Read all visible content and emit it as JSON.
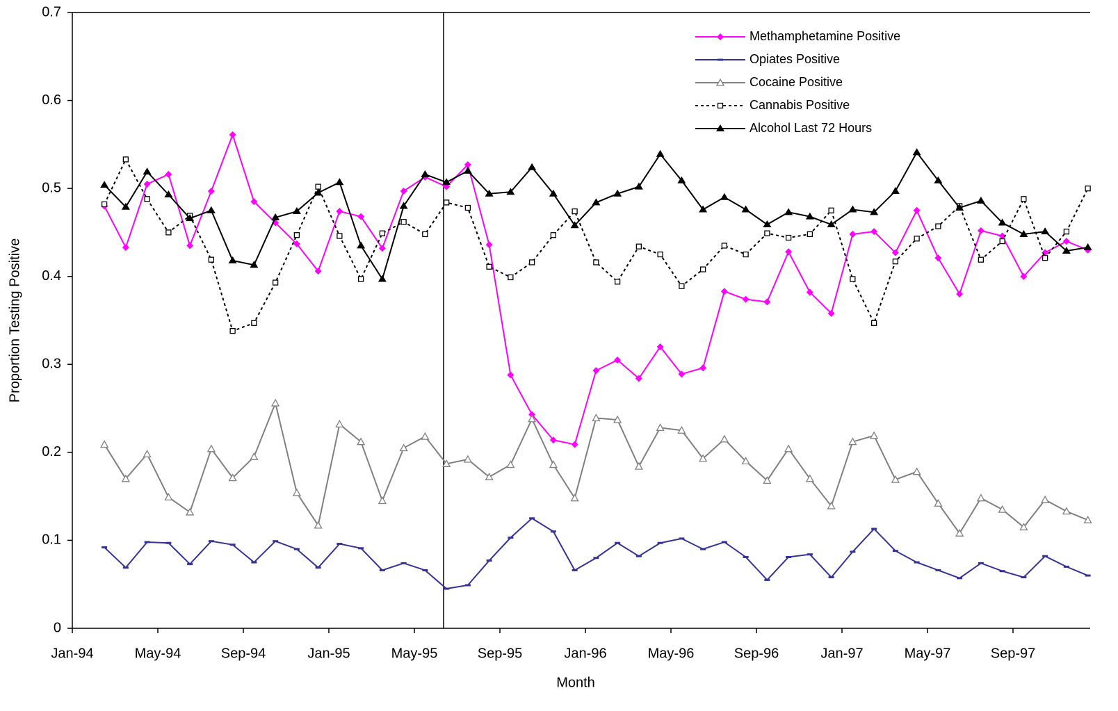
{
  "chart_data": {
    "type": "line",
    "x_label": "Month",
    "y_label": "Proportion Testing Positive",
    "categories": [
      "Jan-94",
      null,
      null,
      null,
      "May-94",
      null,
      null,
      null,
      "Sep-94",
      null,
      null,
      null,
      "Jan-95",
      null,
      null,
      null,
      "May-95",
      null,
      null,
      null,
      "Sep-95",
      null,
      null,
      null,
      "Jan-96",
      null,
      null,
      null,
      "May-96",
      null,
      null,
      null,
      "Sep-96",
      null,
      null,
      null,
      "Jan-97",
      null,
      null,
      null,
      "May-97",
      null,
      null,
      null,
      "Sep-97",
      null,
      null,
      null
    ],
    "ylim": [
      0,
      0.7
    ],
    "yticks": [
      0,
      0.1,
      0.2,
      0.3,
      0.4,
      0.5,
      0.6,
      0.7
    ],
    "legend": "upper right",
    "series": [
      {
        "name": "Methamphetamine Positive",
        "color": "#ff00ff",
        "marker": "diamond",
        "line_style": "solid",
        "values": [
          null,
          0.48,
          0.433,
          0.505,
          0.516,
          0.435,
          0.497,
          0.561,
          0.485,
          0.461,
          0.437,
          0.406,
          0.474,
          0.468,
          0.432,
          0.497,
          0.513,
          0.502,
          0.527,
          0.436,
          0.288,
          0.243,
          0.214,
          0.209,
          0.293,
          0.305,
          0.284,
          0.32,
          0.289,
          0.296,
          0.383,
          0.374,
          0.371,
          0.428,
          0.382,
          0.358,
          0.448,
          0.451,
          0.427,
          0.475,
          0.421,
          0.38,
          0.452,
          0.446,
          0.4,
          0.427,
          0.44,
          0.43
        ]
      },
      {
        "name": "Opiates Positive",
        "color": "#333399",
        "marker": "dash",
        "line_style": "solid",
        "values": [
          null,
          0.092,
          0.069,
          0.098,
          0.097,
          0.073,
          0.099,
          0.095,
          0.075,
          0.099,
          0.09,
          0.069,
          0.096,
          0.091,
          0.066,
          0.074,
          0.066,
          0.045,
          0.049,
          0.077,
          0.103,
          0.125,
          0.11,
          0.066,
          0.08,
          0.097,
          0.082,
          0.097,
          0.102,
          0.09,
          0.098,
          0.081,
          0.055,
          0.081,
          0.084,
          0.058,
          0.087,
          0.113,
          0.088,
          0.075,
          0.066,
          0.057,
          0.074,
          0.065,
          0.058,
          0.082,
          0.07,
          0.06
        ]
      },
      {
        "name": "Cocaine Positive",
        "color": "#808080",
        "marker": "open-triangle",
        "line_style": "solid",
        "values": [
          null,
          0.209,
          0.17,
          0.198,
          0.149,
          0.132,
          0.204,
          0.171,
          0.195,
          0.256,
          0.154,
          0.117,
          0.232,
          0.212,
          0.145,
          0.205,
          0.218,
          0.187,
          0.192,
          0.172,
          0.186,
          0.238,
          0.186,
          0.148,
          0.239,
          0.237,
          0.184,
          0.228,
          0.225,
          0.193,
          0.215,
          0.19,
          0.168,
          0.204,
          0.17,
          0.139,
          0.212,
          0.219,
          0.169,
          0.178,
          0.142,
          0.108,
          0.148,
          0.135,
          0.115,
          0.146,
          0.133,
          0.123
        ]
      },
      {
        "name": "Cannabis Positive",
        "color": "#000000",
        "marker": "open-square",
        "line_style": "dotted",
        "values": [
          null,
          0.482,
          0.533,
          0.488,
          0.45,
          0.469,
          0.419,
          0.338,
          0.347,
          0.393,
          0.447,
          0.502,
          0.446,
          0.397,
          0.449,
          0.462,
          0.448,
          0.484,
          0.478,
          0.411,
          0.399,
          0.416,
          0.447,
          0.474,
          0.416,
          0.394,
          0.434,
          0.425,
          0.389,
          0.408,
          0.435,
          0.425,
          0.449,
          0.444,
          0.448,
          0.475,
          0.397,
          0.347,
          0.417,
          0.443,
          0.457,
          0.48,
          0.419,
          0.44,
          0.488,
          0.421,
          0.451,
          0.5
        ]
      },
      {
        "name": "Alcohol Last 72 Hours",
        "color": "#000000",
        "marker": "triangle",
        "line_style": "solid",
        "values": [
          null,
          0.504,
          0.479,
          0.519,
          0.493,
          0.466,
          0.475,
          0.418,
          0.413,
          0.467,
          0.474,
          0.495,
          0.507,
          0.435,
          0.397,
          0.48,
          0.516,
          0.507,
          0.52,
          0.494,
          0.496,
          0.524,
          0.494,
          0.458,
          0.484,
          0.494,
          0.502,
          0.539,
          0.509,
          0.476,
          0.49,
          0.476,
          0.459,
          0.473,
          0.468,
          0.459,
          0.476,
          0.473,
          0.497,
          0.541,
          0.509,
          0.478,
          0.486,
          0.461,
          0.448,
          0.451,
          0.429,
          0.433
        ]
      }
    ]
  }
}
